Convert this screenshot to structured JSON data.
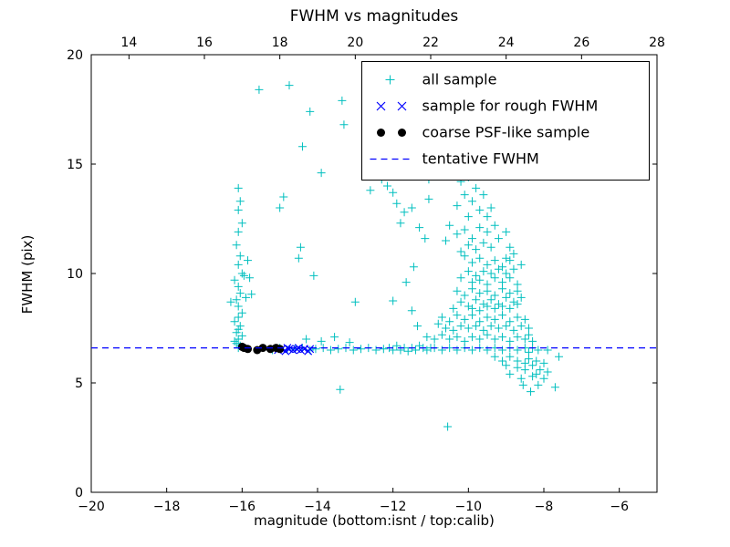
{
  "chart_data": {
    "type": "scatter",
    "title": "FWHM vs magnitudes",
    "xlabel": "magnitude (bottom:isnt / top:calib)",
    "ylabel": "FWHM (pix)",
    "xlim": [
      -20,
      -5
    ],
    "ylim": [
      0,
      20
    ],
    "top_xlim": [
      13,
      28
    ],
    "xticks": [
      -20,
      -18,
      -16,
      -14,
      -12,
      -10,
      -8,
      -6
    ],
    "xtick_labels": [
      "−20",
      "−18",
      "−16",
      "−14",
      "−12",
      "−10",
      "−8",
      "−6"
    ],
    "top_xticks": [
      14,
      16,
      18,
      20,
      22,
      24,
      26,
      28
    ],
    "top_xtick_labels": [
      "14",
      "16",
      "18",
      "20",
      "22",
      "24",
      "26",
      "28"
    ],
    "yticks": [
      0,
      5,
      10,
      15,
      20
    ],
    "ytick_labels": [
      "0",
      "5",
      "10",
      "15",
      "20"
    ],
    "grid": false,
    "legend_position": "upper right",
    "series": [
      {
        "name": "all sample",
        "marker": "plus",
        "color": "#00bfbf",
        "points": [
          [
            -16.1,
            6.6
          ],
          [
            -16.05,
            6.7
          ],
          [
            -16.15,
            6.8
          ],
          [
            -16.2,
            6.9
          ],
          [
            -16.1,
            7.0
          ],
          [
            -16.0,
            7.15
          ],
          [
            -16.15,
            7.3
          ],
          [
            -16.1,
            7.45
          ],
          [
            -16.05,
            7.6
          ],
          [
            -16.2,
            7.8
          ],
          [
            -16.1,
            8.0
          ],
          [
            -16.0,
            8.2
          ],
          [
            -16.1,
            8.5
          ],
          [
            -16.3,
            8.7
          ],
          [
            -16.15,
            8.8
          ],
          [
            -16.05,
            9.1
          ],
          [
            -16.1,
            9.4
          ],
          [
            -16.2,
            9.7
          ],
          [
            -16.0,
            10.0
          ],
          [
            -16.1,
            10.4
          ],
          [
            -16.05,
            10.8
          ],
          [
            -16.15,
            11.3
          ],
          [
            -16.1,
            11.9
          ],
          [
            -16.0,
            12.3
          ],
          [
            -16.1,
            12.9
          ],
          [
            -16.05,
            13.3
          ],
          [
            -16.1,
            13.9
          ],
          [
            -15.95,
            9.9
          ],
          [
            -15.9,
            8.9
          ],
          [
            -15.8,
            9.8
          ],
          [
            -15.75,
            9.05
          ],
          [
            -15.85,
            10.6
          ],
          [
            -15.55,
            18.4
          ],
          [
            -14.75,
            18.6
          ],
          [
            -14.4,
            15.8
          ],
          [
            -14.2,
            17.4
          ],
          [
            -13.35,
            17.9
          ],
          [
            -13.3,
            16.8
          ],
          [
            -13.9,
            14.6
          ],
          [
            -14.9,
            13.5
          ],
          [
            -15.0,
            13.0
          ],
          [
            -14.45,
            11.2
          ],
          [
            -14.5,
            10.7
          ],
          [
            -14.1,
            9.9
          ],
          [
            -13.0,
            8.7
          ],
          [
            -12.6,
            13.8
          ],
          [
            -13.4,
            4.7
          ],
          [
            -15.2,
            6.5
          ],
          [
            -15.0,
            6.6
          ],
          [
            -14.8,
            6.5
          ],
          [
            -14.6,
            6.55
          ],
          [
            -14.4,
            6.6
          ],
          [
            -14.2,
            6.5
          ],
          [
            -14.05,
            6.55
          ],
          [
            -13.85,
            6.6
          ],
          [
            -13.65,
            6.5
          ],
          [
            -13.45,
            6.55
          ],
          [
            -13.25,
            6.6
          ],
          [
            -13.05,
            6.5
          ],
          [
            -12.85,
            6.55
          ],
          [
            -12.65,
            6.6
          ],
          [
            -12.45,
            6.5
          ],
          [
            -12.25,
            6.55
          ],
          [
            -14.3,
            7.0
          ],
          [
            -13.9,
            6.9
          ],
          [
            -13.55,
            7.1
          ],
          [
            -13.15,
            6.85
          ],
          [
            -12.1,
            6.6
          ],
          [
            -12.0,
            6.5
          ],
          [
            -11.9,
            6.7
          ],
          [
            -11.8,
            6.5
          ],
          [
            -11.7,
            6.6
          ],
          [
            -11.6,
            6.45
          ],
          [
            -11.5,
            6.6
          ],
          [
            -11.4,
            6.5
          ],
          [
            -11.3,
            6.7
          ],
          [
            -11.2,
            6.6
          ],
          [
            -11.1,
            6.5
          ],
          [
            -11.0,
            6.6
          ],
          [
            -12.3,
            14.3
          ],
          [
            -12.15,
            14.0
          ],
          [
            -12.0,
            13.7
          ],
          [
            -11.9,
            13.2
          ],
          [
            -11.7,
            12.8
          ],
          [
            -11.5,
            13.0
          ],
          [
            -11.8,
            12.3
          ],
          [
            -11.05,
            14.3
          ],
          [
            -11.3,
            12.1
          ],
          [
            -11.15,
            11.6
          ],
          [
            -11.05,
            13.4
          ],
          [
            -11.65,
            9.6
          ],
          [
            -12.0,
            8.75
          ],
          [
            -11.5,
            8.3
          ],
          [
            -11.35,
            7.6
          ],
          [
            -11.45,
            10.3
          ],
          [
            -10.4,
            14.5
          ],
          [
            -10.2,
            14.2
          ],
          [
            -10.0,
            14.4
          ],
          [
            -9.8,
            13.9
          ],
          [
            -10.1,
            13.6
          ],
          [
            -9.9,
            13.3
          ],
          [
            -10.3,
            13.1
          ],
          [
            -9.7,
            12.9
          ],
          [
            -10.0,
            12.6
          ],
          [
            -9.5,
            12.6
          ],
          [
            -9.6,
            13.6
          ],
          [
            -9.4,
            13.0
          ],
          [
            -10.5,
            12.2
          ],
          [
            -10.3,
            11.8
          ],
          [
            -10.1,
            12.0
          ],
          [
            -9.9,
            11.6
          ],
          [
            -9.7,
            12.1
          ],
          [
            -9.5,
            11.9
          ],
          [
            -9.3,
            12.2
          ],
          [
            -9.6,
            11.4
          ],
          [
            -9.8,
            11.1
          ],
          [
            -10.0,
            11.3
          ],
          [
            -9.4,
            11.2
          ],
          [
            -9.2,
            11.6
          ],
          [
            -9.0,
            11.9
          ],
          [
            -8.9,
            11.2
          ],
          [
            -10.6,
            11.5
          ],
          [
            -10.2,
            11.0
          ],
          [
            -10.1,
            10.8
          ],
          [
            -9.9,
            10.5
          ],
          [
            -9.7,
            10.7
          ],
          [
            -9.5,
            10.4
          ],
          [
            -9.3,
            10.6
          ],
          [
            -9.1,
            10.3
          ],
          [
            -8.9,
            10.6
          ],
          [
            -8.8,
            10.2
          ],
          [
            -9.0,
            10.0
          ],
          [
            -9.2,
            10.2
          ],
          [
            -9.4,
            10.0
          ],
          [
            -9.6,
            10.1
          ],
          [
            -9.8,
            9.9
          ],
          [
            -10.0,
            10.1
          ],
          [
            -10.2,
            9.8
          ],
          [
            -9.9,
            9.6
          ],
          [
            -9.7,
            9.7
          ],
          [
            -9.5,
            9.5
          ],
          [
            -9.3,
            9.8
          ],
          [
            -9.1,
            9.6
          ],
          [
            -8.9,
            9.8
          ],
          [
            -8.7,
            9.5
          ],
          [
            -8.6,
            10.4
          ],
          [
            -8.8,
            10.9
          ],
          [
            -9.0,
            10.7
          ],
          [
            -10.3,
            9.2
          ],
          [
            -10.1,
            9.0
          ],
          [
            -9.9,
            9.3
          ],
          [
            -9.7,
            9.1
          ],
          [
            -9.5,
            9.2
          ],
          [
            -9.3,
            9.0
          ],
          [
            -9.1,
            9.3
          ],
          [
            -8.9,
            9.1
          ],
          [
            -8.7,
            9.2
          ],
          [
            -8.6,
            8.9
          ],
          [
            -8.8,
            8.7
          ],
          [
            -9.0,
            8.9
          ],
          [
            -9.2,
            8.6
          ],
          [
            -9.4,
            8.8
          ],
          [
            -9.6,
            8.6
          ],
          [
            -9.8,
            8.8
          ],
          [
            -10.0,
            8.5
          ],
          [
            -10.2,
            8.7
          ],
          [
            -10.4,
            8.4
          ],
          [
            -9.9,
            8.4
          ],
          [
            -9.7,
            8.3
          ],
          [
            -9.5,
            8.5
          ],
          [
            -9.3,
            8.4
          ],
          [
            -9.1,
            8.5
          ],
          [
            -8.9,
            8.4
          ],
          [
            -8.7,
            8.6
          ],
          [
            -10.7,
            8.0
          ],
          [
            -10.5,
            7.8
          ],
          [
            -10.3,
            8.1
          ],
          [
            -10.1,
            7.9
          ],
          [
            -9.9,
            8.1
          ],
          [
            -9.7,
            7.8
          ],
          [
            -9.5,
            8.0
          ],
          [
            -9.3,
            7.9
          ],
          [
            -9.1,
            8.1
          ],
          [
            -8.9,
            7.8
          ],
          [
            -8.7,
            8.0
          ],
          [
            -8.5,
            7.9
          ],
          [
            -8.4,
            7.5
          ],
          [
            -8.6,
            7.6
          ],
          [
            -8.8,
            7.4
          ],
          [
            -9.0,
            7.6
          ],
          [
            -9.2,
            7.5
          ],
          [
            -9.4,
            7.6
          ],
          [
            -9.6,
            7.4
          ],
          [
            -9.8,
            7.6
          ],
          [
            -10.0,
            7.5
          ],
          [
            -10.2,
            7.6
          ],
          [
            -10.4,
            7.4
          ],
          [
            -10.6,
            7.5
          ],
          [
            -10.8,
            7.7
          ],
          [
            -11.1,
            7.1
          ],
          [
            -10.9,
            7.0
          ],
          [
            -10.7,
            7.2
          ],
          [
            -10.5,
            7.0
          ],
          [
            -10.3,
            7.1
          ],
          [
            -10.1,
            6.9
          ],
          [
            -9.9,
            7.1
          ],
          [
            -9.7,
            7.0
          ],
          [
            -9.5,
            7.2
          ],
          [
            -9.3,
            7.0
          ],
          [
            -9.1,
            7.1
          ],
          [
            -8.9,
            6.9
          ],
          [
            -8.7,
            7.1
          ],
          [
            -8.5,
            7.0
          ],
          [
            -8.3,
            6.9
          ],
          [
            -8.4,
            7.2
          ],
          [
            -10.9,
            6.6
          ],
          [
            -10.7,
            6.5
          ],
          [
            -10.5,
            6.6
          ],
          [
            -10.3,
            6.5
          ],
          [
            -10.1,
            6.6
          ],
          [
            -9.9,
            6.5
          ],
          [
            -9.7,
            6.6
          ],
          [
            -9.5,
            6.5
          ],
          [
            -9.3,
            6.6
          ],
          [
            -9.1,
            6.5
          ],
          [
            -8.9,
            6.6
          ],
          [
            -8.7,
            6.5
          ],
          [
            -8.5,
            6.6
          ],
          [
            -8.4,
            6.4
          ],
          [
            -8.3,
            6.6
          ],
          [
            -9.3,
            6.2
          ],
          [
            -9.1,
            6.0
          ],
          [
            -8.9,
            6.2
          ],
          [
            -8.7,
            6.0
          ],
          [
            -8.5,
            5.9
          ],
          [
            -8.4,
            6.1
          ],
          [
            -8.3,
            5.8
          ],
          [
            -8.2,
            6.0
          ],
          [
            -8.1,
            5.6
          ],
          [
            -8.0,
            5.9
          ],
          [
            -8.2,
            5.4
          ],
          [
            -8.5,
            5.6
          ],
          [
            -8.7,
            5.7
          ],
          [
            -9.0,
            5.8
          ],
          [
            -8.9,
            5.4
          ],
          [
            -8.6,
            5.2
          ],
          [
            -8.3,
            5.3
          ],
          [
            -8.0,
            5.2
          ],
          [
            -7.9,
            5.5
          ],
          [
            -7.7,
            4.8
          ],
          [
            -8.35,
            4.6
          ],
          [
            -8.55,
            4.9
          ],
          [
            -8.15,
            4.9
          ],
          [
            -10.55,
            3.0
          ],
          [
            -7.6,
            6.2
          ],
          [
            -7.9,
            6.5
          ],
          [
            -8.15,
            6.5
          ]
        ]
      },
      {
        "name": "sample for rough FWHM",
        "marker": "x",
        "color": "#0000ff",
        "points": [
          [
            -15.05,
            6.5
          ],
          [
            -14.95,
            6.55
          ],
          [
            -14.85,
            6.45
          ],
          [
            -14.75,
            6.55
          ],
          [
            -14.65,
            6.5
          ],
          [
            -14.55,
            6.55
          ],
          [
            -14.45,
            6.5
          ],
          [
            -14.35,
            6.55
          ],
          [
            -14.25,
            6.45
          ],
          [
            -14.2,
            6.55
          ],
          [
            -14.5,
            6.6
          ],
          [
            -14.8,
            6.6
          ]
        ]
      },
      {
        "name": "coarse PSF-like sample",
        "marker": "circle",
        "color": "#000000",
        "points": [
          [
            -16.0,
            6.65
          ],
          [
            -15.95,
            6.6
          ],
          [
            -15.85,
            6.55
          ],
          [
            -15.6,
            6.5
          ],
          [
            -15.45,
            6.6
          ],
          [
            -15.25,
            6.55
          ],
          [
            -15.1,
            6.6
          ],
          [
            -15.0,
            6.55
          ]
        ]
      },
      {
        "name": "tentative FWHM",
        "type": "hline",
        "linestyle": "dashed",
        "color": "#0000ff",
        "y": 6.6
      }
    ]
  }
}
